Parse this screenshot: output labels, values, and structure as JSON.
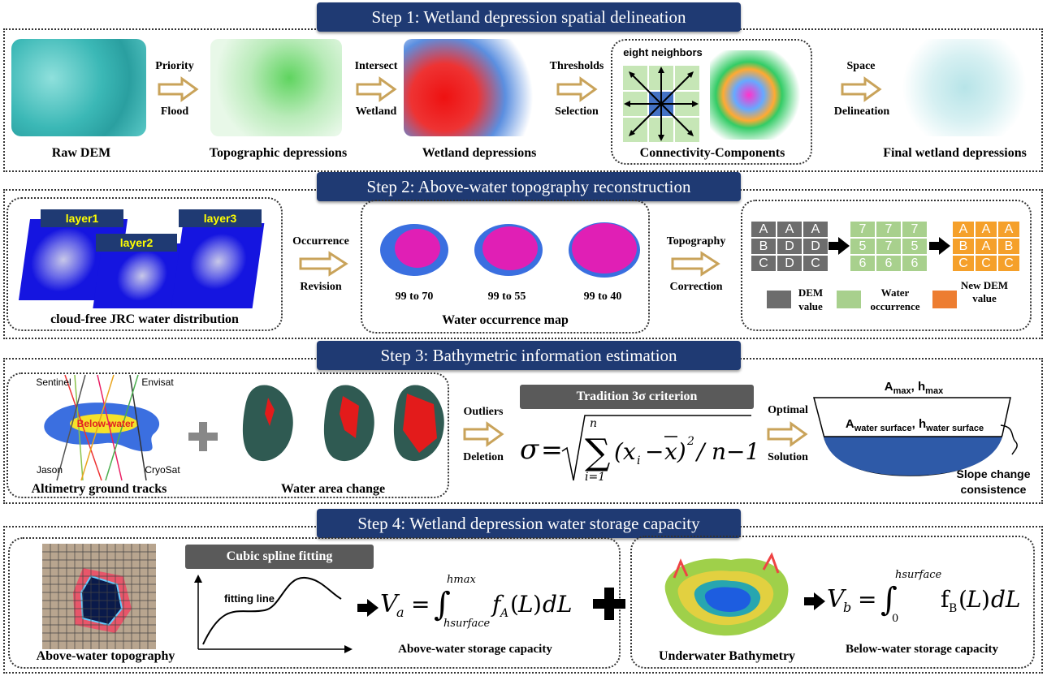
{
  "step1": {
    "title": "Step 1: Wetland depression spatial delineation",
    "raw_dem": "Raw DEM",
    "arrow1": [
      "Priority",
      "Flood"
    ],
    "topo_dep": "Topographic depressions",
    "arrow2": [
      "Intersect",
      "Wetland"
    ],
    "wetland_dep": "Wetland depressions",
    "arrow3": [
      "Thresholds",
      "Selection"
    ],
    "eight_neighbors": "eight neighbors",
    "connectivity": "Connectivity-Components",
    "arrow4": [
      "Space",
      "Delineation"
    ],
    "final": "Final wetland depressions"
  },
  "step2": {
    "title": "Step 2: Above-water topography reconstruction",
    "layer1": "layer1",
    "layer2": "layer2",
    "layer3": "layer3",
    "jrc": "cloud-free JRC water distribution",
    "arrow1": [
      "Occurrence",
      "Revision"
    ],
    "occ_labels": [
      "99 to 70",
      "99 to 55",
      "99 to 40"
    ],
    "occ_map": "Water occurrence map",
    "arrow2": [
      "Topography",
      "Correction"
    ],
    "grid_dem": [
      "A",
      "A",
      "A",
      "B",
      "D",
      "D",
      "C",
      "D",
      "C"
    ],
    "grid_occ": [
      "7",
      "7",
      "7",
      "5",
      "7",
      "5",
      "6",
      "6",
      "6"
    ],
    "grid_new": [
      "A",
      "A",
      "A",
      "B",
      "A",
      "B",
      "C",
      "C",
      "C"
    ],
    "legend": [
      "DEM value",
      "Water occurrence",
      "New DEM value"
    ]
  },
  "step3": {
    "title": "Step 3: Bathymetric information estimation",
    "sats": [
      "Sentinel",
      "Envisat",
      "Jason",
      "CryoSat"
    ],
    "below_water": "Below-water",
    "altimetry": "Altimetry ground tracks",
    "water_area": "Water area change",
    "arrow1": [
      "Outliers",
      "Deletion"
    ],
    "criterion": "Tradition  3σ criterion",
    "arrow2": [
      "Optimal",
      "Solution"
    ],
    "amax": "A",
    "amax_sub": "max",
    "hmax": "h",
    "hmax_sub": "max",
    "aws": "A",
    "aws_sub": "water surface",
    "hws": "h",
    "hws_sub": "water surface",
    "slope": [
      "Slope change",
      "consistence"
    ]
  },
  "step4": {
    "title": "Step 4: Wetland depression water storage capacity",
    "above_topo": "Above-water topography",
    "spline": "Cubic spline  fitting",
    "fitting_line": "fitting line",
    "above_cap": "Above-water storage capacity",
    "underwater": "Underwater Bathymetry",
    "below_cap": "Below-water storage capacity"
  },
  "colors": {
    "banner": "#1f3a73",
    "arrow": "#c9a35a",
    "dem_gray": "#6d6d6d",
    "occ_green": "#a8d08d",
    "new_orange": "#f5a02a"
  }
}
